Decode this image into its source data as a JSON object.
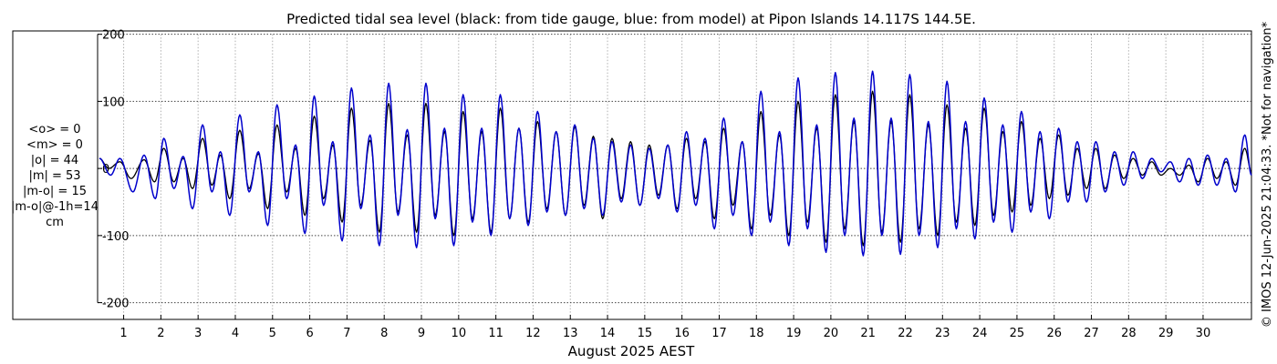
{
  "chart_data": {
    "type": "line",
    "title": "Predicted tidal sea level (black: from tide gauge, blue: from model) at Pipon Islands 14.117S 144.5E.",
    "xlabel": "August 2025 AEST",
    "ylabel": "",
    "xlim": [
      0.3,
      31.3
    ],
    "ylim": [
      -225,
      205
    ],
    "yticks": [
      -200,
      -100,
      0,
      100,
      200
    ],
    "xticks": [
      1,
      2,
      3,
      4,
      5,
      6,
      7,
      8,
      9,
      10,
      11,
      12,
      13,
      14,
      15,
      16,
      17,
      18,
      19,
      20,
      21,
      22,
      23,
      24,
      25,
      26,
      27,
      28,
      29,
      30
    ],
    "grid": true,
    "stats": [
      "<o> = 0",
      "<m> = 0",
      "|o| = 44",
      "|m| = 53",
      "|m-o| = 15",
      "|m-o|@-1h=14",
      "cm"
    ],
    "credit": "© IMOS 12-Jun-2025 21:04:33. *Not for navigation*",
    "series": [
      {
        "color": "#000000",
        "peaks": [
          {
            "x": 0.35,
            "y": 15
          },
          {
            "x": 0.6,
            "y": 0
          },
          {
            "x": 0.9,
            "y": 10
          },
          {
            "x": 1.2,
            "y": -15
          },
          {
            "x": 1.55,
            "y": 13
          },
          {
            "x": 1.83,
            "y": -20
          },
          {
            "x": 2.08,
            "y": 30
          },
          {
            "x": 2.35,
            "y": -20
          },
          {
            "x": 2.6,
            "y": 15
          },
          {
            "x": 2.85,
            "y": -30
          },
          {
            "x": 3.12,
            "y": 45
          },
          {
            "x": 3.37,
            "y": -25
          },
          {
            "x": 3.6,
            "y": 20
          },
          {
            "x": 3.85,
            "y": -45
          },
          {
            "x": 4.12,
            "y": 57
          },
          {
            "x": 4.37,
            "y": -30
          },
          {
            "x": 4.62,
            "y": 22
          },
          {
            "x": 4.87,
            "y": -60
          },
          {
            "x": 5.12,
            "y": 65
          },
          {
            "x": 5.38,
            "y": -35
          },
          {
            "x": 5.62,
            "y": 30
          },
          {
            "x": 5.87,
            "y": -70
          },
          {
            "x": 6.12,
            "y": 78
          },
          {
            "x": 6.37,
            "y": -45
          },
          {
            "x": 6.62,
            "y": 35
          },
          {
            "x": 6.87,
            "y": -80
          },
          {
            "x": 7.12,
            "y": 90
          },
          {
            "x": 7.37,
            "y": -55
          },
          {
            "x": 7.62,
            "y": 42
          },
          {
            "x": 7.87,
            "y": -95
          },
          {
            "x": 8.12,
            "y": 97
          },
          {
            "x": 8.37,
            "y": -65
          },
          {
            "x": 8.62,
            "y": 50
          },
          {
            "x": 8.87,
            "y": -95
          },
          {
            "x": 9.12,
            "y": 97
          },
          {
            "x": 9.37,
            "y": -70
          },
          {
            "x": 9.62,
            "y": 55
          },
          {
            "x": 9.87,
            "y": -100
          },
          {
            "x": 10.12,
            "y": 85
          },
          {
            "x": 10.37,
            "y": -75
          },
          {
            "x": 10.62,
            "y": 55
          },
          {
            "x": 10.87,
            "y": -95
          },
          {
            "x": 11.12,
            "y": 90
          },
          {
            "x": 11.37,
            "y": -75
          },
          {
            "x": 11.62,
            "y": 60
          },
          {
            "x": 11.87,
            "y": -80
          },
          {
            "x": 12.12,
            "y": 70
          },
          {
            "x": 12.37,
            "y": -60
          },
          {
            "x": 12.62,
            "y": 55
          },
          {
            "x": 12.87,
            "y": -70
          },
          {
            "x": 13.12,
            "y": 62
          },
          {
            "x": 13.37,
            "y": -55
          },
          {
            "x": 13.62,
            "y": 48
          },
          {
            "x": 13.87,
            "y": -75
          },
          {
            "x": 14.12,
            "y": 45
          },
          {
            "x": 14.37,
            "y": -45
          },
          {
            "x": 14.62,
            "y": 40
          },
          {
            "x": 14.87,
            "y": -55
          },
          {
            "x": 15.12,
            "y": 35
          },
          {
            "x": 15.37,
            "y": -40
          },
          {
            "x": 15.62,
            "y": 35
          },
          {
            "x": 15.87,
            "y": -60
          },
          {
            "x": 16.12,
            "y": 45
          },
          {
            "x": 16.37,
            "y": -45
          },
          {
            "x": 16.62,
            "y": 40
          },
          {
            "x": 16.87,
            "y": -75
          },
          {
            "x": 17.12,
            "y": 60
          },
          {
            "x": 17.37,
            "y": -55
          },
          {
            "x": 17.62,
            "y": 40
          },
          {
            "x": 17.87,
            "y": -90
          },
          {
            "x": 18.12,
            "y": 85
          },
          {
            "x": 18.37,
            "y": -70
          },
          {
            "x": 18.62,
            "y": 50
          },
          {
            "x": 18.87,
            "y": -100
          },
          {
            "x": 19.12,
            "y": 100
          },
          {
            "x": 19.37,
            "y": -80
          },
          {
            "x": 19.62,
            "y": 60
          },
          {
            "x": 19.87,
            "y": -110
          },
          {
            "x": 20.12,
            "y": 110
          },
          {
            "x": 20.37,
            "y": -90
          },
          {
            "x": 20.62,
            "y": 70
          },
          {
            "x": 20.87,
            "y": -115
          },
          {
            "x": 21.12,
            "y": 115
          },
          {
            "x": 21.37,
            "y": -95
          },
          {
            "x": 21.62,
            "y": 70
          },
          {
            "x": 21.87,
            "y": -110
          },
          {
            "x": 22.12,
            "y": 110
          },
          {
            "x": 22.37,
            "y": -90
          },
          {
            "x": 22.62,
            "y": 65
          },
          {
            "x": 22.87,
            "y": -100
          },
          {
            "x": 23.12,
            "y": 95
          },
          {
            "x": 23.37,
            "y": -80
          },
          {
            "x": 23.62,
            "y": 60
          },
          {
            "x": 23.87,
            "y": -85
          },
          {
            "x": 24.12,
            "y": 90
          },
          {
            "x": 24.37,
            "y": -70
          },
          {
            "x": 24.62,
            "y": 55
          },
          {
            "x": 24.87,
            "y": -65
          },
          {
            "x": 25.12,
            "y": 70
          },
          {
            "x": 25.37,
            "y": -55
          },
          {
            "x": 25.62,
            "y": 45
          },
          {
            "x": 25.87,
            "y": -45
          },
          {
            "x": 26.12,
            "y": 50
          },
          {
            "x": 26.37,
            "y": -40
          },
          {
            "x": 26.62,
            "y": 30
          },
          {
            "x": 26.87,
            "y": -30
          },
          {
            "x": 27.12,
            "y": 30
          },
          {
            "x": 27.37,
            "y": -30
          },
          {
            "x": 27.62,
            "y": 20
          },
          {
            "x": 27.87,
            "y": -15
          },
          {
            "x": 28.12,
            "y": 15
          },
          {
            "x": 28.37,
            "y": -10
          },
          {
            "x": 28.62,
            "y": 10
          },
          {
            "x": 28.87,
            "y": -10
          },
          {
            "x": 29.12,
            "y": 0
          },
          {
            "x": 29.37,
            "y": -10
          },
          {
            "x": 29.62,
            "y": 5
          },
          {
            "x": 29.87,
            "y": -20
          },
          {
            "x": 30.12,
            "y": 15
          },
          {
            "x": 30.37,
            "y": -15
          },
          {
            "x": 30.62,
            "y": 10
          },
          {
            "x": 30.87,
            "y": -25
          },
          {
            "x": 31.12,
            "y": 30
          },
          {
            "x": 31.3,
            "y": -5
          }
        ]
      },
      {
        "color": "#0000cc",
        "peaks": [
          {
            "x": 0.35,
            "y": 15
          },
          {
            "x": 0.65,
            "y": -10
          },
          {
            "x": 0.9,
            "y": 15
          },
          {
            "x": 1.25,
            "y": -35
          },
          {
            "x": 1.55,
            "y": 20
          },
          {
            "x": 1.85,
            "y": -45
          },
          {
            "x": 2.08,
            "y": 45
          },
          {
            "x": 2.35,
            "y": -30
          },
          {
            "x": 2.6,
            "y": 18
          },
          {
            "x": 2.85,
            "y": -60
          },
          {
            "x": 3.12,
            "y": 65
          },
          {
            "x": 3.37,
            "y": -35
          },
          {
            "x": 3.6,
            "y": 25
          },
          {
            "x": 3.85,
            "y": -70
          },
          {
            "x": 4.12,
            "y": 80
          },
          {
            "x": 4.37,
            "y": -35
          },
          {
            "x": 4.62,
            "y": 25
          },
          {
            "x": 4.87,
            "y": -85
          },
          {
            "x": 5.12,
            "y": 95
          },
          {
            "x": 5.38,
            "y": -45
          },
          {
            "x": 5.62,
            "y": 35
          },
          {
            "x": 5.87,
            "y": -97
          },
          {
            "x": 6.12,
            "y": 108
          },
          {
            "x": 6.37,
            "y": -55
          },
          {
            "x": 6.62,
            "y": 40
          },
          {
            "x": 6.87,
            "y": -108
          },
          {
            "x": 7.12,
            "y": 120
          },
          {
            "x": 7.37,
            "y": -60
          },
          {
            "x": 7.62,
            "y": 50
          },
          {
            "x": 7.87,
            "y": -115
          },
          {
            "x": 8.12,
            "y": 127
          },
          {
            "x": 8.37,
            "y": -70
          },
          {
            "x": 8.62,
            "y": 58
          },
          {
            "x": 8.87,
            "y": -118
          },
          {
            "x": 9.12,
            "y": 127
          },
          {
            "x": 9.37,
            "y": -75
          },
          {
            "x": 9.62,
            "y": 60
          },
          {
            "x": 9.87,
            "y": -115
          },
          {
            "x": 10.12,
            "y": 110
          },
          {
            "x": 10.37,
            "y": -80
          },
          {
            "x": 10.62,
            "y": 60
          },
          {
            "x": 10.87,
            "y": -100
          },
          {
            "x": 11.12,
            "y": 110
          },
          {
            "x": 11.37,
            "y": -75
          },
          {
            "x": 11.62,
            "y": 60
          },
          {
            "x": 11.87,
            "y": -85
          },
          {
            "x": 12.12,
            "y": 85
          },
          {
            "x": 12.37,
            "y": -65
          },
          {
            "x": 12.62,
            "y": 55
          },
          {
            "x": 12.87,
            "y": -70
          },
          {
            "x": 13.12,
            "y": 65
          },
          {
            "x": 13.37,
            "y": -60
          },
          {
            "x": 13.62,
            "y": 45
          },
          {
            "x": 13.87,
            "y": -70
          },
          {
            "x": 14.12,
            "y": 40
          },
          {
            "x": 14.37,
            "y": -50
          },
          {
            "x": 14.62,
            "y": 35
          },
          {
            "x": 14.87,
            "y": -55
          },
          {
            "x": 15.12,
            "y": 30
          },
          {
            "x": 15.37,
            "y": -45
          },
          {
            "x": 15.62,
            "y": 35
          },
          {
            "x": 15.87,
            "y": -65
          },
          {
            "x": 16.12,
            "y": 55
          },
          {
            "x": 16.37,
            "y": -55
          },
          {
            "x": 16.62,
            "y": 45
          },
          {
            "x": 16.87,
            "y": -90
          },
          {
            "x": 17.12,
            "y": 75
          },
          {
            "x": 17.37,
            "y": -70
          },
          {
            "x": 17.62,
            "y": 40
          },
          {
            "x": 17.87,
            "y": -100
          },
          {
            "x": 18.12,
            "y": 115
          },
          {
            "x": 18.37,
            "y": -80
          },
          {
            "x": 18.62,
            "y": 55
          },
          {
            "x": 18.87,
            "y": -115
          },
          {
            "x": 19.12,
            "y": 135
          },
          {
            "x": 19.37,
            "y": -90
          },
          {
            "x": 19.62,
            "y": 65
          },
          {
            "x": 19.87,
            "y": -125
          },
          {
            "x": 20.12,
            "y": 143
          },
          {
            "x": 20.37,
            "y": -100
          },
          {
            "x": 20.62,
            "y": 75
          },
          {
            "x": 20.87,
            "y": -130
          },
          {
            "x": 21.12,
            "y": 145
          },
          {
            "x": 21.37,
            "y": -100
          },
          {
            "x": 21.62,
            "y": 75
          },
          {
            "x": 21.87,
            "y": -128
          },
          {
            "x": 22.12,
            "y": 140
          },
          {
            "x": 22.37,
            "y": -100
          },
          {
            "x": 22.62,
            "y": 70
          },
          {
            "x": 22.87,
            "y": -118
          },
          {
            "x": 23.12,
            "y": 130
          },
          {
            "x": 23.37,
            "y": -90
          },
          {
            "x": 23.62,
            "y": 70
          },
          {
            "x": 23.87,
            "y": -105
          },
          {
            "x": 24.12,
            "y": 105
          },
          {
            "x": 24.37,
            "y": -80
          },
          {
            "x": 24.62,
            "y": 65
          },
          {
            "x": 24.87,
            "y": -95
          },
          {
            "x": 25.12,
            "y": 85
          },
          {
            "x": 25.37,
            "y": -65
          },
          {
            "x": 25.62,
            "y": 55
          },
          {
            "x": 25.87,
            "y": -75
          },
          {
            "x": 26.12,
            "y": 60
          },
          {
            "x": 26.37,
            "y": -50
          },
          {
            "x": 26.62,
            "y": 40
          },
          {
            "x": 26.87,
            "y": -50
          },
          {
            "x": 27.12,
            "y": 40
          },
          {
            "x": 27.37,
            "y": -35
          },
          {
            "x": 27.62,
            "y": 25
          },
          {
            "x": 27.87,
            "y": -25
          },
          {
            "x": 28.12,
            "y": 25
          },
          {
            "x": 28.37,
            "y": -15
          },
          {
            "x": 28.62,
            "y": 15
          },
          {
            "x": 28.87,
            "y": -5
          },
          {
            "x": 29.12,
            "y": 10
          },
          {
            "x": 29.37,
            "y": -20
          },
          {
            "x": 29.62,
            "y": 15
          },
          {
            "x": 29.87,
            "y": -25
          },
          {
            "x": 30.12,
            "y": 20
          },
          {
            "x": 30.37,
            "y": -25
          },
          {
            "x": 30.62,
            "y": 15
          },
          {
            "x": 30.87,
            "y": -35
          },
          {
            "x": 31.12,
            "y": 50
          },
          {
            "x": 31.3,
            "y": -10
          }
        ]
      }
    ]
  }
}
